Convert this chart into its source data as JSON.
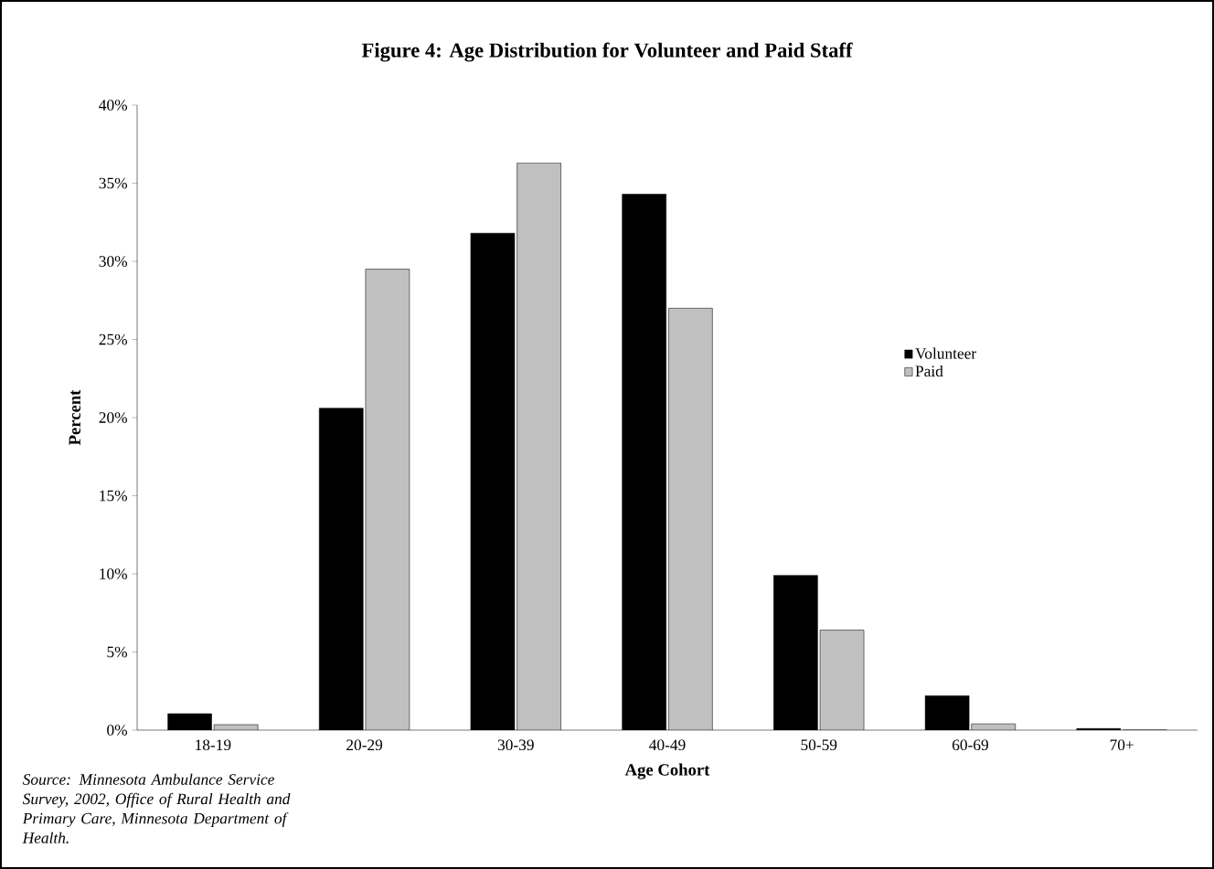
{
  "chart_data": {
    "type": "bar",
    "title": "Figure 4: Age Distribution for Volunteer and Paid Staff",
    "xlabel": "Age Cohort",
    "ylabel": "Percent",
    "categories": [
      "18-19",
      "20-29",
      "30-39",
      "40-49",
      "50-59",
      "60-69",
      "70+"
    ],
    "series": [
      {
        "name": "Volunteer",
        "color": "#000000",
        "values": [
          1.05,
          20.6,
          31.8,
          34.3,
          9.9,
          2.2,
          0.1
        ]
      },
      {
        "name": "Paid",
        "color": "#c0c0c0",
        "values": [
          0.35,
          29.5,
          36.3,
          27.0,
          6.4,
          0.4,
          0
        ]
      }
    ],
    "ylim": [
      0,
      40
    ],
    "yticks": [
      {
        "value": 0,
        "label": "0%"
      },
      {
        "value": 5,
        "label": "5%"
      },
      {
        "value": 10,
        "label": "10%"
      },
      {
        "value": 15,
        "label": "15%"
      },
      {
        "value": 20,
        "label": "20%"
      },
      {
        "value": 25,
        "label": "25%"
      },
      {
        "value": 30,
        "label": "30%"
      },
      {
        "value": 35,
        "label": "35%"
      },
      {
        "value": 40,
        "label": "40%"
      }
    ],
    "legend": "right",
    "annotations": [
      "Source: Minnesota Ambulance Service Survey, 2002, Office of Rural Health and Primary Care, Minnesota Department of Health."
    ]
  }
}
